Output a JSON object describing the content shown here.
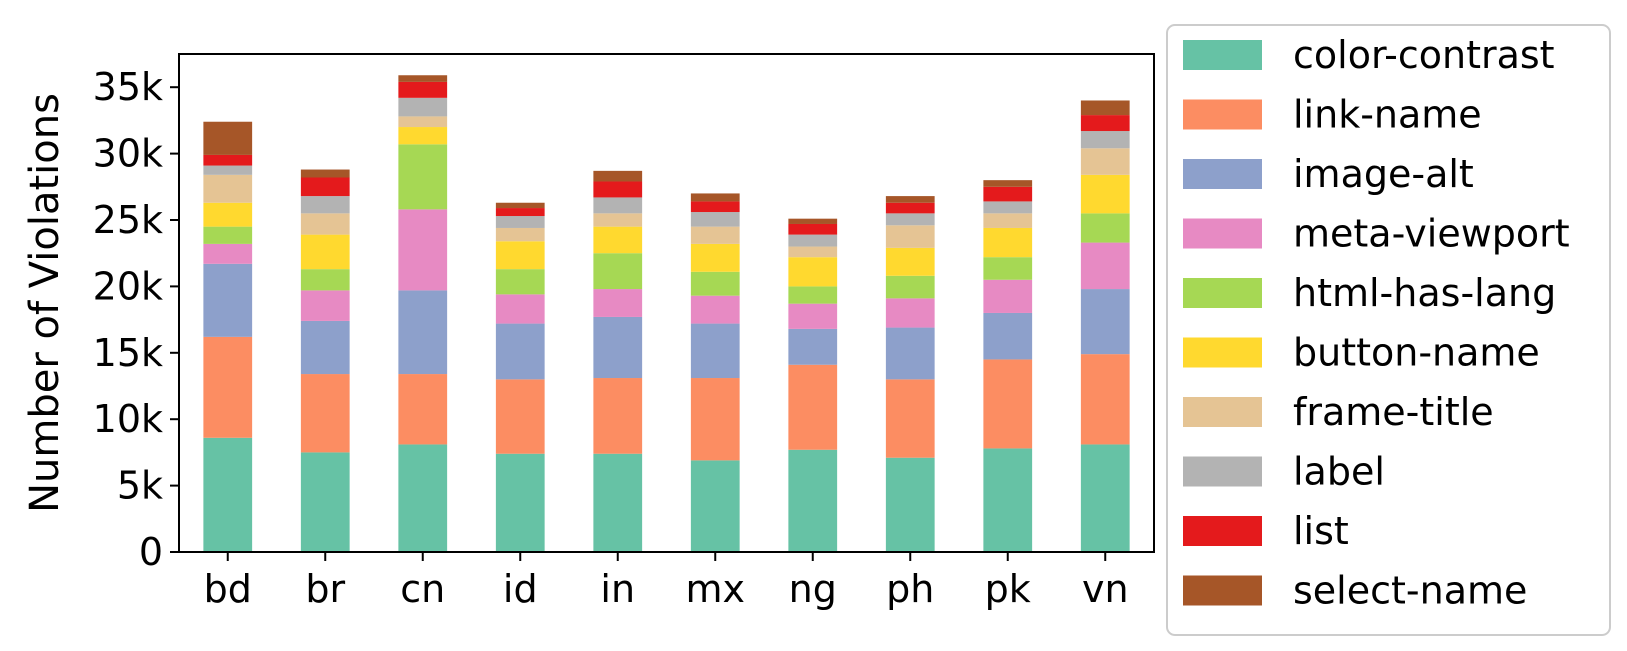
{
  "chart_data": {
    "type": "bar",
    "stacked": true,
    "title": "",
    "xlabel": "",
    "ylabel": "Number of Violations",
    "ylim": [
      0,
      37500
    ],
    "yticks": [
      0,
      5000,
      10000,
      15000,
      20000,
      25000,
      30000,
      35000
    ],
    "ytick_labels": [
      "0",
      "5k",
      "10k",
      "15k",
      "20k",
      "25k",
      "30k",
      "35k"
    ],
    "categories": [
      "bd",
      "br",
      "cn",
      "id",
      "in",
      "mx",
      "ng",
      "ph",
      "pk",
      "vn"
    ],
    "legend_position": "right",
    "grid": false,
    "series": [
      {
        "name": "color-contrast",
        "color": "#66c2a5",
        "values": [
          8600,
          7500,
          8100,
          7400,
          7400,
          6900,
          7700,
          7100,
          7800,
          8100
        ]
      },
      {
        "name": "link-name",
        "color": "#fc8d62",
        "values": [
          7600,
          5900,
          5300,
          5600,
          5700,
          6200,
          6400,
          5900,
          6700,
          6800
        ]
      },
      {
        "name": "image-alt",
        "color": "#8da0cb",
        "values": [
          5500,
          4000,
          6300,
          4200,
          4600,
          4100,
          2700,
          3900,
          3500,
          4900
        ]
      },
      {
        "name": "meta-viewport",
        "color": "#e78ac3",
        "values": [
          1500,
          2300,
          6100,
          2200,
          2100,
          2100,
          1900,
          2200,
          2500,
          3500
        ]
      },
      {
        "name": "html-has-lang",
        "color": "#a6d854",
        "values": [
          1300,
          1600,
          4900,
          1900,
          2700,
          1800,
          1300,
          1700,
          1700,
          2200
        ]
      },
      {
        "name": "button-name",
        "color": "#ffd92f",
        "values": [
          1800,
          2600,
          1300,
          2100,
          2000,
          2100,
          2200,
          2100,
          2200,
          2900
        ]
      },
      {
        "name": "frame-title",
        "color": "#e5c494",
        "values": [
          2100,
          1600,
          800,
          1000,
          1000,
          1300,
          800,
          1700,
          1100,
          2000
        ]
      },
      {
        "name": "label",
        "color": "#b3b3b3",
        "values": [
          700,
          1300,
          1400,
          900,
          1200,
          1100,
          900,
          900,
          900,
          1300
        ]
      },
      {
        "name": "list",
        "color": "#e41a1c",
        "values": [
          800,
          1400,
          1200,
          600,
          1200,
          800,
          800,
          800,
          1100,
          1200
        ]
      },
      {
        "name": "select-name",
        "color": "#a65628",
        "values": [
          2500,
          600,
          500,
          400,
          800,
          600,
          400,
          500,
          500,
          1100
        ]
      }
    ]
  }
}
